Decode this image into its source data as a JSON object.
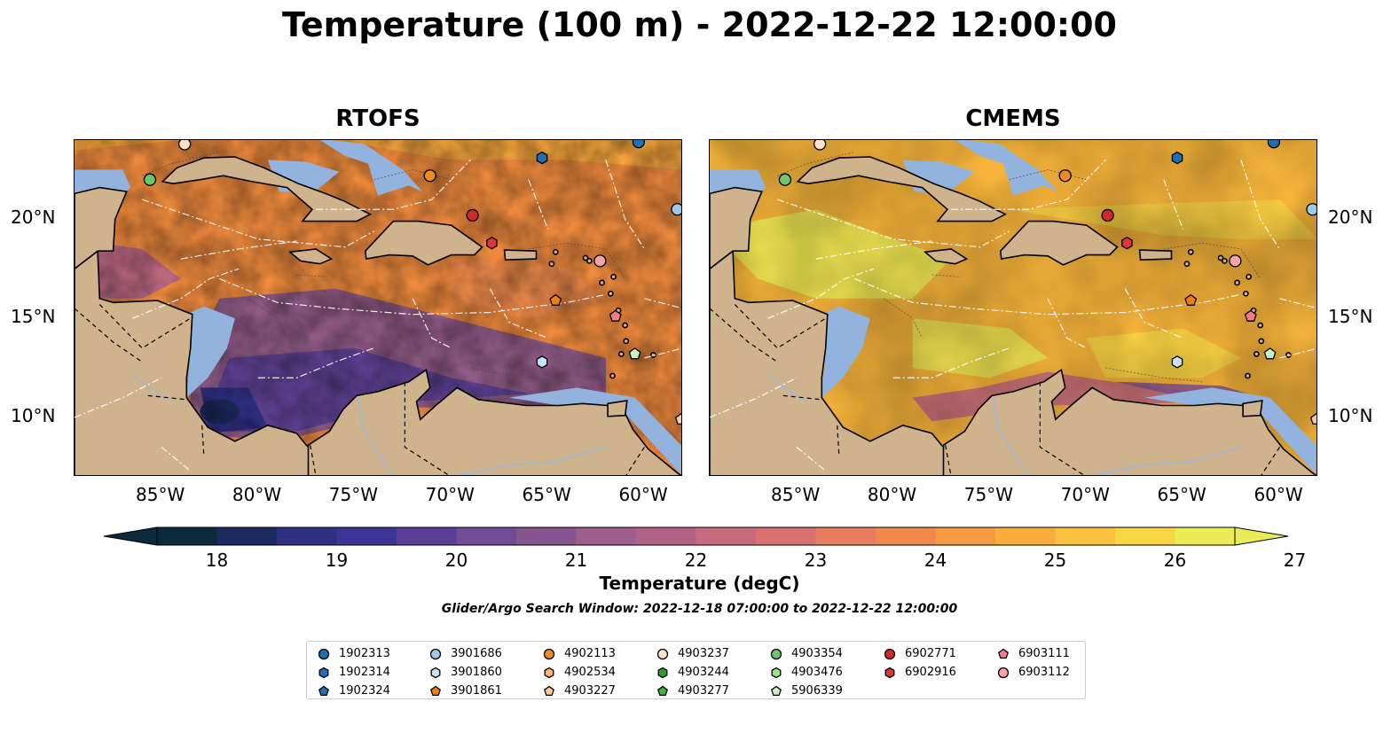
{
  "title": "Temperature (100 m) - 2022-12-22 12:00:00",
  "panels": [
    {
      "title": "RTOFS"
    },
    {
      "title": "CMEMS"
    }
  ],
  "lon_ticks": [
    "85°W",
    "80°W",
    "75°W",
    "70°W",
    "65°W",
    "60°W"
  ],
  "lat_ticks": [
    "20°N",
    "15°N",
    "10°N"
  ],
  "colorbar": {
    "label": "Temperature (degC)",
    "ticks": [
      "18",
      "19",
      "20",
      "21",
      "22",
      "23",
      "24",
      "25",
      "26",
      "27"
    ],
    "min": 18,
    "max": 27,
    "extend": "both",
    "colors": [
      "#0b2a3c",
      "#1b2a5e",
      "#2f2f84",
      "#3d3593",
      "#5a3f98",
      "#6f4c93",
      "#86558f",
      "#9d5e8c",
      "#b36287",
      "#c76a7d",
      "#d8716f",
      "#e57d5e",
      "#ef8a4c",
      "#f69a3f",
      "#f9ad3c",
      "#fac03e",
      "#f6d644",
      "#ebeb55"
    ]
  },
  "search_window": "Glider/Argo Search Window: 2022-12-18 07:00:00 to 2022-12-22 12:00:00",
  "legend": {
    "columns": [
      [
        {
          "label": "1902313",
          "marker": "circle",
          "color": "#1f6fb4"
        },
        {
          "label": "1902314",
          "marker": "hexagon",
          "color": "#1f6fb4"
        },
        {
          "label": "1902324",
          "marker": "pentagon",
          "color": "#1f6fb4"
        }
      ],
      [
        {
          "label": "3901686",
          "marker": "circle",
          "color": "#9ecae9"
        },
        {
          "label": "3901860",
          "marker": "hexagon",
          "color": "#c6e3f7"
        },
        {
          "label": "3901861",
          "marker": "pentagon",
          "color": "#f07f0f"
        }
      ],
      [
        {
          "label": "4902113",
          "marker": "circle",
          "color": "#f08a24"
        },
        {
          "label": "4902534",
          "marker": "hexagon",
          "color": "#fbb26a"
        },
        {
          "label": "4903227",
          "marker": "pentagon",
          "color": "#fdc796"
        }
      ],
      [
        {
          "label": "4903237",
          "marker": "circle",
          "color": "#fde2c8"
        },
        {
          "label": "4903244",
          "marker": "hexagon",
          "color": "#2ca02c"
        },
        {
          "label": "4903277",
          "marker": "pentagon",
          "color": "#3db43d"
        }
      ],
      [
        {
          "label": "4903354",
          "marker": "circle",
          "color": "#6cc66c"
        },
        {
          "label": "4903476",
          "marker": "hexagon",
          "color": "#9fdf8f"
        },
        {
          "label": "5906339",
          "marker": "pentagon",
          "color": "#c9f1c0"
        }
      ],
      [
        {
          "label": "6902771",
          "marker": "circle",
          "color": "#d62728"
        },
        {
          "label": "6902916",
          "marker": "hexagon",
          "color": "#e0363a"
        }
      ],
      [
        {
          "label": "6903111",
          "marker": "pentagon",
          "color": "#ef7c88"
        },
        {
          "label": "6903112",
          "marker": "circle",
          "color": "#f6a3a8"
        }
      ]
    ]
  },
  "floats": [
    {
      "id": "1902313",
      "marker": "circle",
      "color": "#1f6fb4",
      "lon": -60.3,
      "lat": 23.9
    },
    {
      "id": "1902314",
      "marker": "hexagon",
      "color": "#1f6fb4",
      "lon": -65.3,
      "lat": 23.1
    },
    {
      "id": "3901686",
      "marker": "circle",
      "color": "#9ecae9",
      "lon": -58.3,
      "lat": 20.5
    },
    {
      "id": "3901860",
      "marker": "hexagon",
      "color": "#c6e3f7",
      "lon": -65.3,
      "lat": 12.8
    },
    {
      "id": "3901861",
      "marker": "pentagon",
      "color": "#f07f0f",
      "lon": -64.6,
      "lat": 15.9
    },
    {
      "id": "4902113",
      "marker": "circle",
      "color": "#f08a24",
      "lon": -71.1,
      "lat": 22.2
    },
    {
      "id": "4903227",
      "marker": "pentagon",
      "color": "#fdc796",
      "lon": -58.1,
      "lat": 9.9
    },
    {
      "id": "4903237",
      "marker": "circle",
      "color": "#fde2c8",
      "lon": -83.8,
      "lat": 23.8
    },
    {
      "id": "4903354",
      "marker": "circle",
      "color": "#6cc66c",
      "lon": -85.6,
      "lat": 22.0
    },
    {
      "id": "5906339",
      "marker": "pentagon",
      "color": "#c9f1c0",
      "lon": -60.5,
      "lat": 13.2
    },
    {
      "id": "6902771",
      "marker": "circle",
      "color": "#d62728",
      "lon": -68.9,
      "lat": 20.2
    },
    {
      "id": "6902916",
      "marker": "hexagon",
      "color": "#e0363a",
      "lon": -67.9,
      "lat": 18.8
    },
    {
      "id": "6903111",
      "marker": "pentagon",
      "color": "#ef7c88",
      "lon": -61.5,
      "lat": 15.1
    },
    {
      "id": "6903112",
      "marker": "circle",
      "color": "#f6a3a8",
      "lon": -62.3,
      "lat": 17.9
    }
  ],
  "map_extent": {
    "lon": [
      -89.5,
      -58.0
    ],
    "lat": [
      7.0,
      24.0
    ]
  },
  "fill_colors": {
    "land": "#cfb38c",
    "shelf": "#93b3df",
    "deep": "#082030",
    "warm_rtofs": "#ef8a3d",
    "warm_cmems": "#f5b33a"
  }
}
